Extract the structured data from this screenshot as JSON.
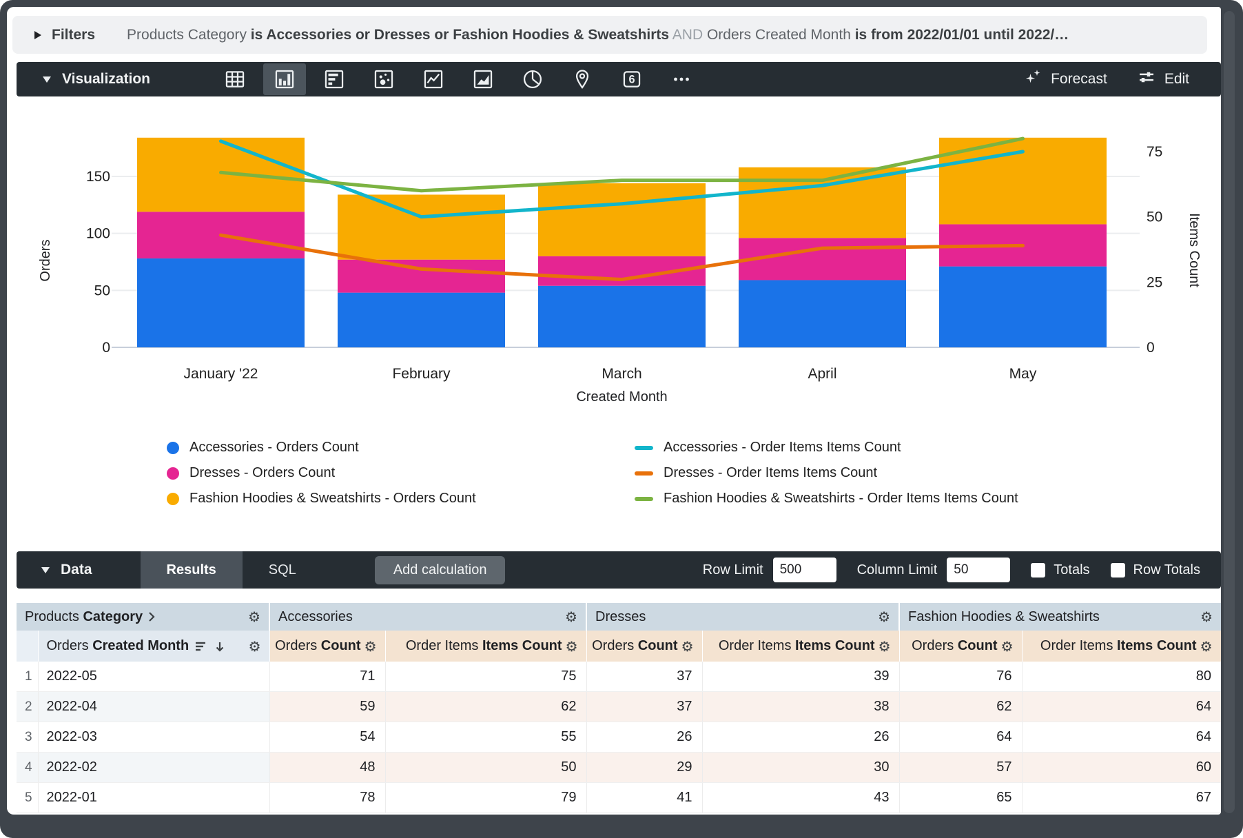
{
  "filters": {
    "label": "Filters",
    "segments": [
      {
        "text": "Products Category ",
        "style": "dim"
      },
      {
        "text": "is Accessories or Dresses or Fashion Hoodies & Sweatshirts",
        "style": "strong"
      },
      {
        "text": " AND ",
        "style": "faint"
      },
      {
        "text": "Orders Created Month ",
        "style": "dim"
      },
      {
        "text": "is from 2022/01/01 until 2022/…",
        "style": "strong"
      }
    ]
  },
  "viz": {
    "title": "Visualization",
    "icons": [
      {
        "name": "table-chart",
        "selected": false
      },
      {
        "name": "column-chart",
        "selected": true
      },
      {
        "name": "bar-chart",
        "selected": false
      },
      {
        "name": "scatter-chart",
        "selected": false
      },
      {
        "name": "line-chart",
        "selected": false
      },
      {
        "name": "area-chart",
        "selected": false
      },
      {
        "name": "pie-chart",
        "selected": false
      },
      {
        "name": "map-chart",
        "selected": false
      },
      {
        "name": "single-value",
        "selected": false,
        "glyph": "6"
      },
      {
        "name": "more",
        "selected": false
      }
    ],
    "forecast_label": "Forecast",
    "edit_label": "Edit"
  },
  "chart_data": {
    "type": "bar",
    "subtype": "stacked-columns-with-lines-dual-axis",
    "categories": [
      "January '22",
      "February",
      "March",
      "April",
      "May"
    ],
    "xlabel": "Created Month",
    "left_axis": {
      "label": "Orders",
      "ticks": [
        0,
        50,
        100,
        150
      ],
      "max": 214
    },
    "right_axis": {
      "label": "Items Count",
      "ticks": [
        0,
        25,
        50,
        75
      ],
      "max": 94
    },
    "bar_series": [
      {
        "name": "Accessories - Orders Count",
        "color": "#1A73E8",
        "values": [
          78,
          48,
          54,
          59,
          71
        ]
      },
      {
        "name": "Dresses - Orders Count",
        "color": "#E52592",
        "values": [
          41,
          29,
          26,
          37,
          37
        ]
      },
      {
        "name": "Fashion Hoodies & Sweatshirts - Orders Count",
        "color": "#F9AB00",
        "values": [
          65,
          57,
          64,
          62,
          76
        ]
      }
    ],
    "line_series": [
      {
        "name": "Accessories - Order Items Items Count",
        "color": "#12B5CB",
        "values": [
          79,
          50,
          55,
          62,
          75
        ]
      },
      {
        "name": "Dresses - Order Items Items Count",
        "color": "#E8710A",
        "values": [
          43,
          30,
          26,
          38,
          39
        ]
      },
      {
        "name": "Fashion Hoodies & Sweatshirts - Order Items Items Count",
        "color": "#7CB342",
        "values": [
          67,
          60,
          64,
          64,
          80
        ]
      }
    ],
    "grid": true,
    "legend_position": "bottom"
  },
  "data_panel": {
    "title": "Data",
    "tabs": [
      {
        "label": "Results",
        "selected": true
      },
      {
        "label": "SQL",
        "selected": false
      }
    ],
    "add_calculation_label": "Add calculation",
    "row_limit_label": "Row Limit",
    "row_limit_value": "500",
    "column_limit_label": "Column Limit",
    "column_limit_value": "50",
    "totals_label": "Totals",
    "totals_checked": false,
    "row_totals_label": "Row Totals",
    "row_totals_checked": false
  },
  "table": {
    "dimension_group": {
      "plain": "Products",
      "bold": "Category"
    },
    "dimension_header": {
      "plain": "Orders",
      "bold": "Created Month"
    },
    "groups": [
      "Accessories",
      "Dresses",
      "Fashion Hoodies & Sweatshirts"
    ],
    "measure_headers": [
      {
        "plain": "Orders",
        "bold": "Count"
      },
      {
        "plain": "Order Items",
        "bold": "Items Count"
      }
    ],
    "rows": [
      {
        "index": 1,
        "month": "2022-05",
        "values": [
          71,
          75,
          37,
          39,
          76,
          80
        ]
      },
      {
        "index": 2,
        "month": "2022-04",
        "values": [
          59,
          62,
          37,
          38,
          62,
          64
        ]
      },
      {
        "index": 3,
        "month": "2022-03",
        "values": [
          54,
          55,
          26,
          26,
          64,
          64
        ]
      },
      {
        "index": 4,
        "month": "2022-02",
        "values": [
          48,
          50,
          29,
          30,
          57,
          60
        ]
      },
      {
        "index": 5,
        "month": "2022-01",
        "values": [
          78,
          79,
          41,
          43,
          65,
          67
        ]
      }
    ]
  }
}
